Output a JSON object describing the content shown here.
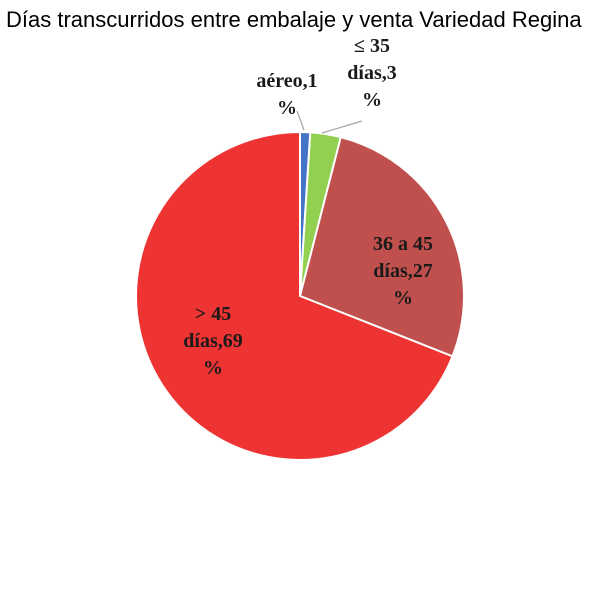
{
  "chart_data": {
    "type": "pie",
    "title": "Días transcurridos entre embalaje y venta Variedad Regina",
    "slices": [
      {
        "name": "aéreo",
        "value": 1,
        "color": "#4472C4",
        "label_lines": [
          "aéreo,1",
          "%"
        ]
      },
      {
        "name": "≤ 35 días",
        "value": 3,
        "color": "#92D050",
        "label_lines": [
          "≤ 35",
          "días,3",
          "%"
        ]
      },
      {
        "name": "36 a 45 días",
        "value": 27,
        "color": "#C0504D",
        "label_lines": [
          "36 a 45",
          "días,27",
          "%"
        ]
      },
      {
        "name": "> 45 días",
        "value": 69,
        "color": "#EE3333",
        "label_lines": [
          "> 45",
          "días,69",
          "%"
        ]
      }
    ],
    "legend": "none"
  }
}
